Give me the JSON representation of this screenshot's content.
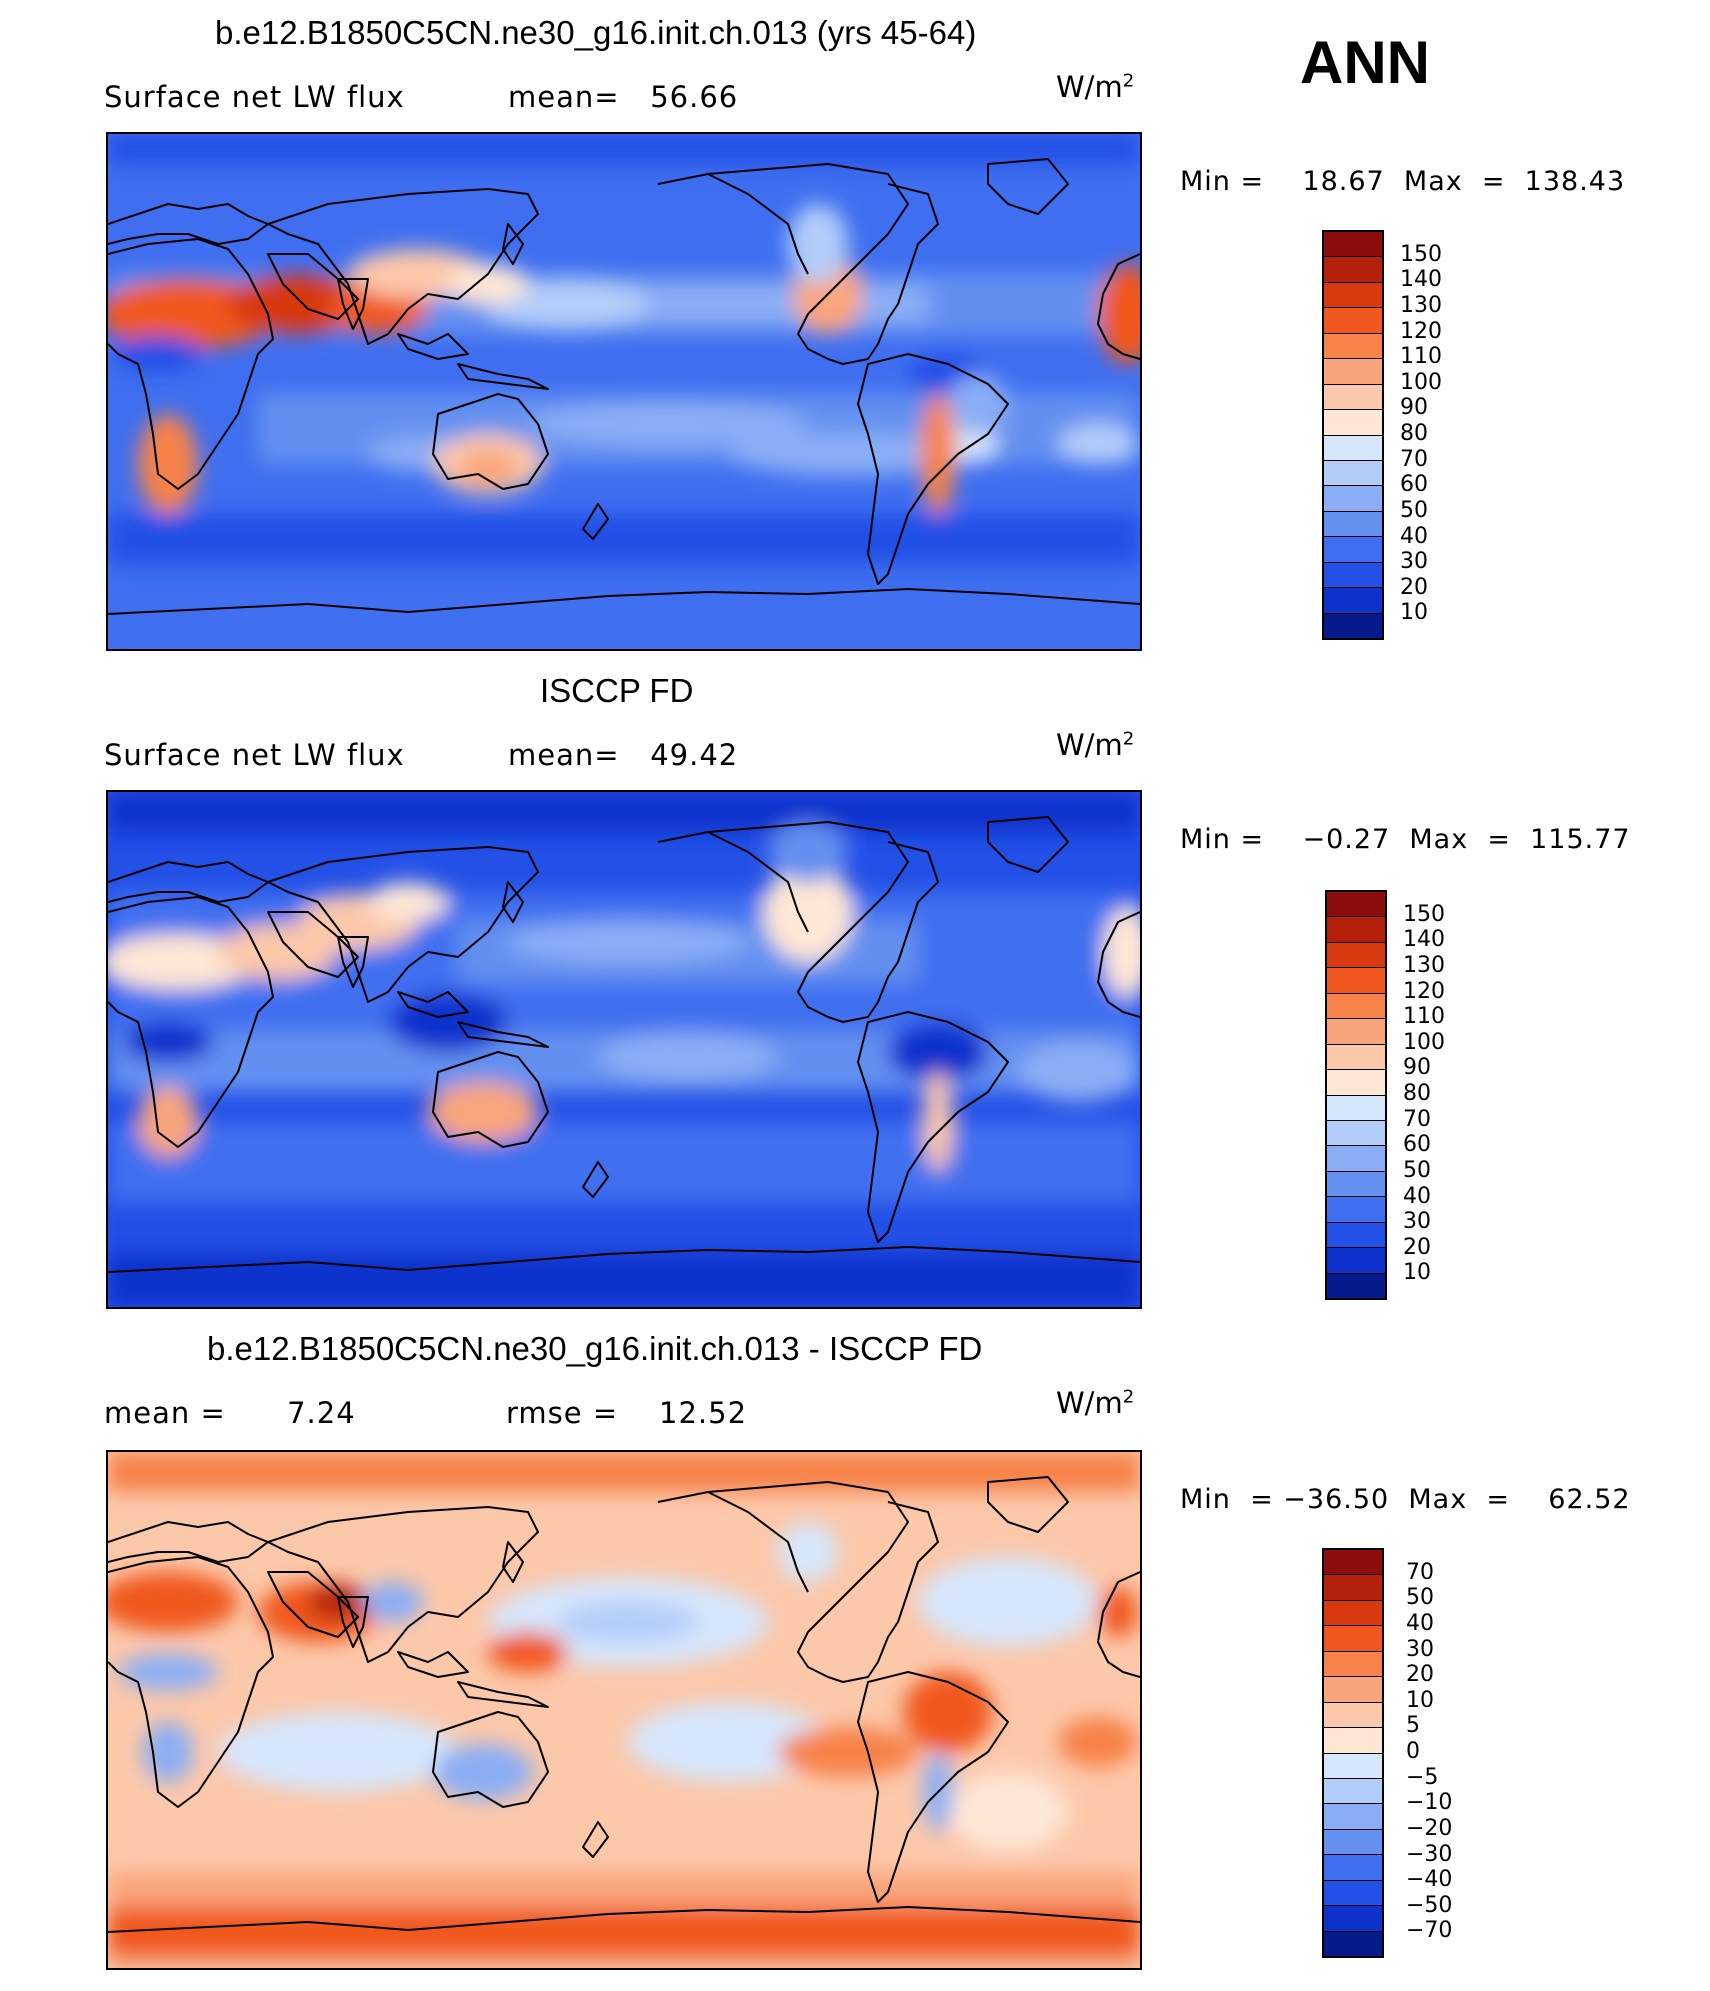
{
  "season": "ANN",
  "units_base": "W/m",
  "units_exp": "2",
  "panels": [
    {
      "title": "b.e12.B1850C5CN.ne30_g16.init.ch.013 (yrs 45-64)",
      "sub_left": "Surface net LW flux",
      "sub_right": "mean=   56.66",
      "minmax": "Min =    18.67  Max  =  138.43",
      "palette": "abs",
      "map_id": "model"
    },
    {
      "title": "ISCCP FD",
      "sub_left": "Surface net LW flux",
      "sub_right": "mean=   49.42",
      "minmax": "Min =    −0.27  Max  =  115.77",
      "palette": "abs",
      "map_id": "obs"
    },
    {
      "title": "b.e12.B1850C5CN.ne30_g16.init.ch.013 - ISCCP FD",
      "sub_left": "mean =      7.24",
      "sub_right": "rmse =    12.52",
      "minmax": "Min  = −36.50  Max  =    62.52",
      "palette": "diff",
      "map_id": "diff"
    }
  ],
  "colorbars": {
    "abs": {
      "labels": [
        "150",
        "140",
        "130",
        "120",
        "110",
        "100",
        "90",
        "80",
        "70",
        "60",
        "50",
        "40",
        "30",
        "20",
        "10"
      ],
      "colors": [
        "#8c0d0d",
        "#b5200c",
        "#d8390f",
        "#f0581f",
        "#f7824a",
        "#f9a57c",
        "#fcc8aa",
        "#fee7d5",
        "#d6e6fb",
        "#b3cdf9",
        "#8aaef5",
        "#6490f0",
        "#3f6ff0",
        "#2350e6",
        "#0f32cc",
        "#061a8c"
      ]
    },
    "diff": {
      "labels": [
        "70",
        "50",
        "40",
        "30",
        "20",
        "10",
        "5",
        "0",
        "−5",
        "−10",
        "−20",
        "−30",
        "−40",
        "−50",
        "−70"
      ],
      "colors": [
        "#8c0d0d",
        "#b5200c",
        "#d8390f",
        "#f0581f",
        "#f7824a",
        "#f9a57c",
        "#fcc8aa",
        "#fee7d5",
        "#d6e6fb",
        "#b3cdf9",
        "#8aaef5",
        "#6490f0",
        "#3f6ff0",
        "#2350e6",
        "#0f32cc",
        "#061a8c"
      ]
    }
  }
}
